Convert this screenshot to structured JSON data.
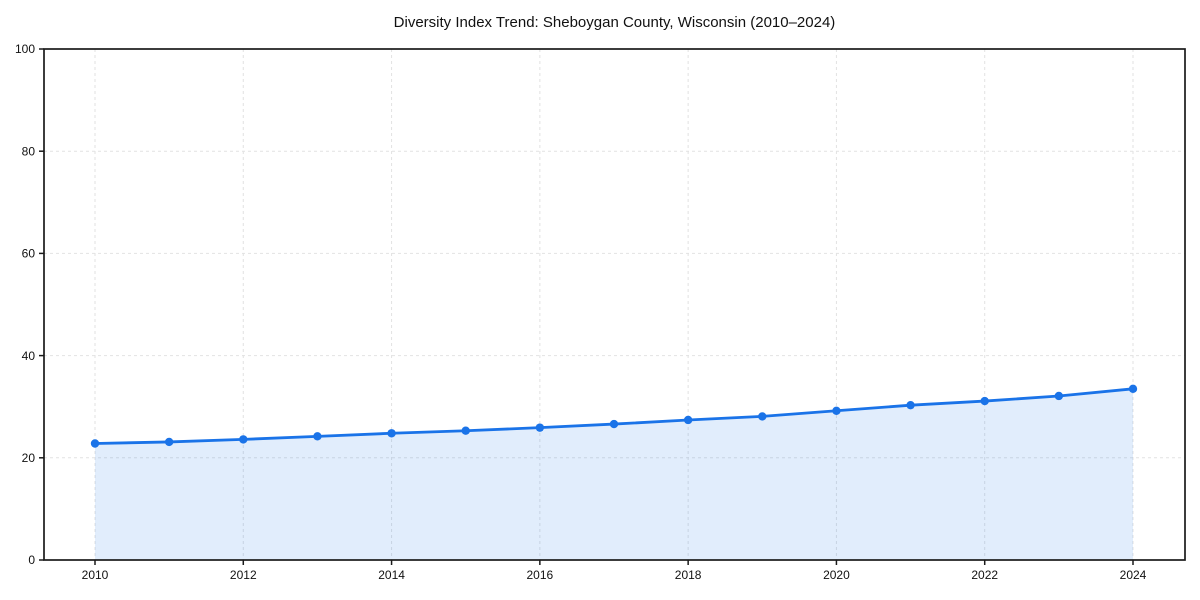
{
  "chart_data": {
    "type": "line",
    "title": "Diversity Index Trend: Sheboygan County, Wisconsin (2010–2024)",
    "x": [
      2010,
      2011,
      2012,
      2013,
      2014,
      2015,
      2016,
      2017,
      2018,
      2019,
      2020,
      2021,
      2022,
      2023,
      2024
    ],
    "series": [
      {
        "name": "Diversity Index",
        "values": [
          22.8,
          23.1,
          23.6,
          24.2,
          24.8,
          25.3,
          25.9,
          26.6,
          27.4,
          28.1,
          29.2,
          30.3,
          31.1,
          32.1,
          33.5
        ]
      }
    ],
    "xlabel": "",
    "ylabel": "",
    "ylim": [
      0,
      100
    ],
    "yticks": [
      0,
      20,
      40,
      60,
      80,
      100
    ],
    "xticks": [
      2010,
      2012,
      2014,
      2016,
      2018,
      2020,
      2022,
      2024
    ],
    "grid": true,
    "grid_style": "dashed",
    "legend": false,
    "marker": "circle",
    "line_color": "#1a73e8",
    "fill_color": "rgba(26,115,232,0.13)",
    "grid_color": "#e2e2e2",
    "spine_color": "#1a1a1a",
    "tick_label_color": "#111111"
  }
}
